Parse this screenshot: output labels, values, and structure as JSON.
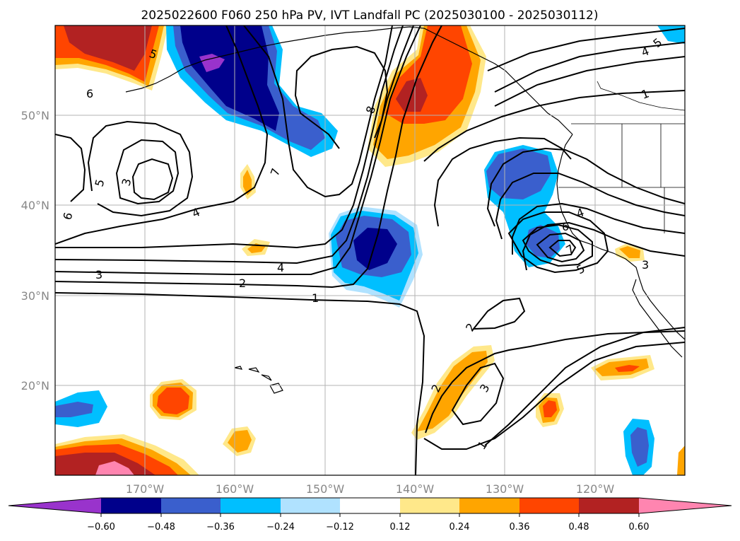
{
  "title": "2025022600 F060 250 hPa PV, IVT Landfall PC (2025030100 - 2025030112)",
  "longitude_labels": [
    "170°W",
    "160°W",
    "150°W",
    "140°W",
    "130°W",
    "120°W"
  ],
  "latitude_labels": [
    "50°N",
    "40°N",
    "30°N",
    "20°N"
  ],
  "colorbar": {
    "tick_labels": [
      "−0.60",
      "−0.48",
      "−0.36",
      "−0.24",
      "−0.12",
      "0.12",
      "0.24",
      "0.36",
      "0.48",
      "0.60"
    ],
    "colors": [
      "#9933cc",
      "#00008b",
      "#3a5fcd",
      "#00bfff",
      "#b0e2ff",
      "#ffffff",
      "#ffe88a",
      "#ffa500",
      "#ff4500",
      "#b22222",
      "#ff85b0"
    ]
  },
  "contour_labels": [
    "1",
    "2",
    "3",
    "4",
    "5",
    "6",
    "7",
    "8"
  ],
  "map_extent": {
    "lon_min": -180,
    "lon_max": -110,
    "lat_min": 10,
    "lat_max": 60
  }
}
